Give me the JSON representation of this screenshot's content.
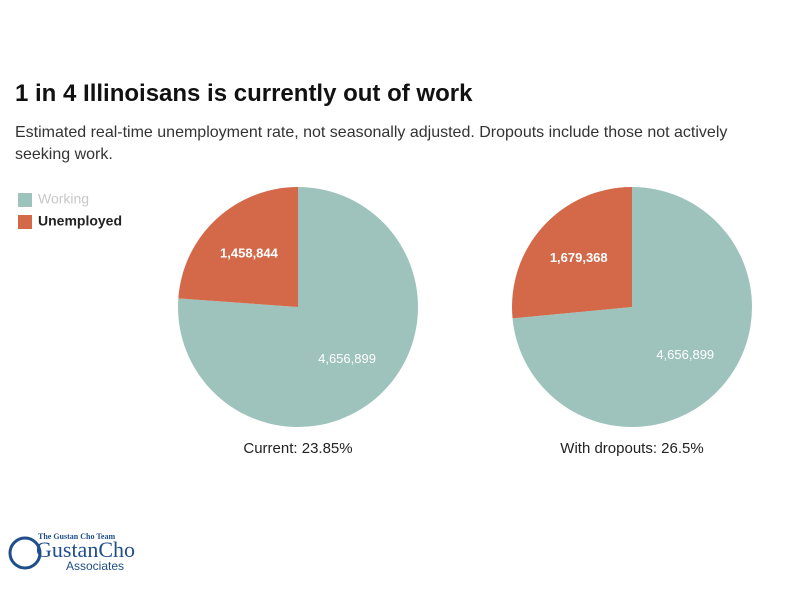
{
  "title": "1 in 4 Illinoisans is currently out of work",
  "subtitle": "Estimated real-time unemployment rate, not seasonally adjusted. Dropouts include those not actively seeking work.",
  "legend": [
    {
      "name": "Working",
      "color": "#9dc3bc"
    },
    {
      "name": "Unemployed",
      "color": "#d4694a"
    }
  ],
  "chart_data": [
    {
      "type": "pie",
      "caption": "Current: 23.85%",
      "values": [
        4656899,
        1458844
      ],
      "value_labels": [
        "4,656,899",
        "1,458,844"
      ]
    },
    {
      "type": "pie",
      "caption": "With dropouts: 26.5%",
      "values": [
        4656899,
        1679368
      ],
      "value_labels": [
        "4,656,899",
        "1,679,368"
      ]
    }
  ],
  "logo": {
    "tagline": "The Gustan Cho Team",
    "name": "GustanCho",
    "sub": "Associates"
  }
}
